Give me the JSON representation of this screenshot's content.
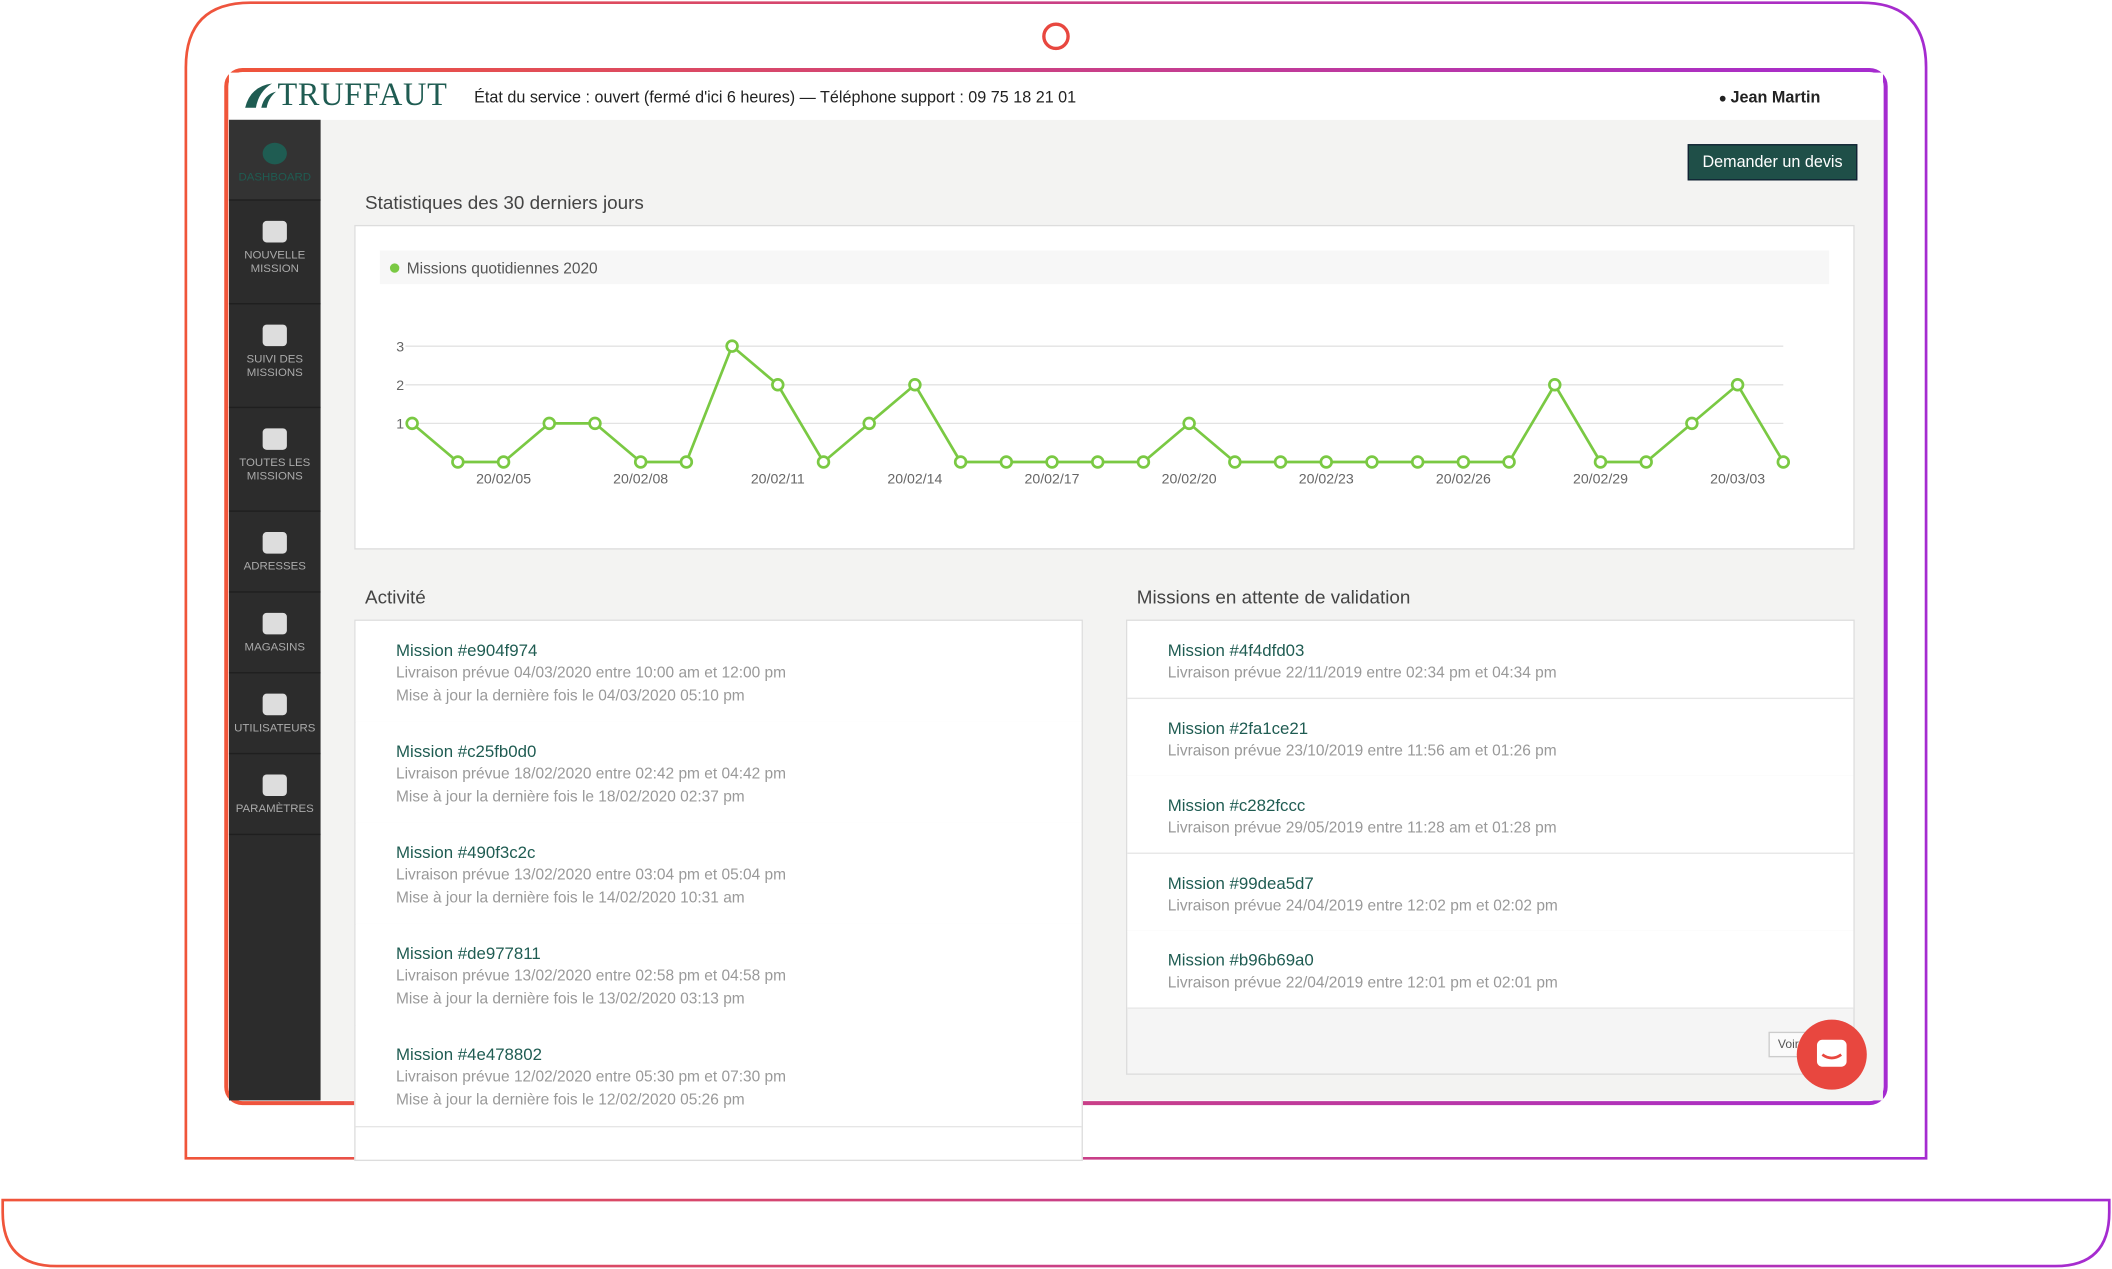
{
  "header": {
    "logo": "TRUFFAUT",
    "status": "État du service : ouvert (fermé d'ici 6 heures) — Téléphone support : 09 75 18 21 01",
    "user": "Jean Martin"
  },
  "sidebar": [
    "DASHBOARD",
    "NOUVELLE MISSION",
    "SUIVI DES MISSIONS",
    "TOUTES LES MISSIONS",
    "ADRESSES",
    "MAGASINS",
    "UTILISATEURS",
    "PARAMÈTRES"
  ],
  "button": "Demander un devis",
  "chart_data": {
    "type": "line",
    "title": "Statistiques des 30 derniers jours",
    "categories": [
      null,
      null,
      "20/02/05",
      null,
      null,
      "20/02/08",
      null,
      null,
      "20/02/11",
      null,
      null,
      "20/02/14",
      null,
      null,
      "20/02/17",
      null,
      null,
      "20/02/20",
      null,
      null,
      "20/02/23",
      null,
      null,
      "20/02/26",
      null,
      null,
      "20/02/29",
      null,
      null,
      "20/03/03",
      null
    ],
    "series": [
      {
        "name": "Missions quotidiennes 2020",
        "color": "#7ac943",
        "values": [
          1,
          0,
          0,
          1,
          1,
          0,
          0,
          3,
          2,
          0,
          1,
          2,
          0,
          0,
          0,
          0,
          0,
          1,
          0,
          0,
          0,
          0,
          0,
          0,
          0,
          2,
          0,
          0,
          1,
          2,
          0
        ]
      }
    ],
    "ylim": [
      0,
      3
    ],
    "yticks": [
      1,
      2,
      3
    ],
    "grid": true
  },
  "activity": {
    "title": "Activité",
    "items": [
      {
        "title": "Mission #e904f974",
        "delivery": "Livraison prévue 04/03/2020 entre 10:00 am et 12:00 pm",
        "updated": "Mise à jour la dernière fois le 04/03/2020 05:10 pm"
      },
      {
        "title": "Mission #c25fb0d0",
        "delivery": "Livraison prévue 18/02/2020 entre 02:42 pm et 04:42 pm",
        "updated": "Mise à jour la dernière fois le 18/02/2020 02:37 pm"
      },
      {
        "title": "Mission #490f3c2c",
        "delivery": "Livraison prévue 13/02/2020 entre 03:04 pm et 05:04 pm",
        "updated": "Mise à jour la dernière fois le 14/02/2020 10:31 am"
      },
      {
        "title": "Mission #de977811",
        "delivery": "Livraison prévue 13/02/2020 entre 02:58 pm et 04:58 pm",
        "updated": "Mise à jour la dernière fois le 13/02/2020 03:13 pm"
      },
      {
        "title": "Mission #4e478802",
        "delivery": "Livraison prévue 12/02/2020 entre 05:30 pm et 07:30 pm",
        "updated": "Mise à jour la dernière fois le 12/02/2020 05:26 pm"
      }
    ]
  },
  "pending": {
    "title": "Missions en attente de validation",
    "items": [
      {
        "title": "Mission #4f4dfd03",
        "delivery": "Livraison prévue 22/11/2019 entre 02:34 pm et 04:34 pm"
      },
      {
        "title": "Mission #2fa1ce21",
        "delivery": "Livraison prévue 23/10/2019 entre 11:56 am et 01:26 pm"
      },
      {
        "title": "Mission #c282fccc",
        "delivery": "Livraison prévue 29/05/2019 entre 11:28 am et 01:28 pm"
      },
      {
        "title": "Mission #99dea5d7",
        "delivery": "Livraison prévue 24/04/2019 entre 12:02 pm et 02:02 pm"
      },
      {
        "title": "Mission #b96b69a0",
        "delivery": "Livraison prévue 22/04/2019 entre 12:01 pm et 02:01 pm"
      }
    ],
    "more": "Voir"
  }
}
